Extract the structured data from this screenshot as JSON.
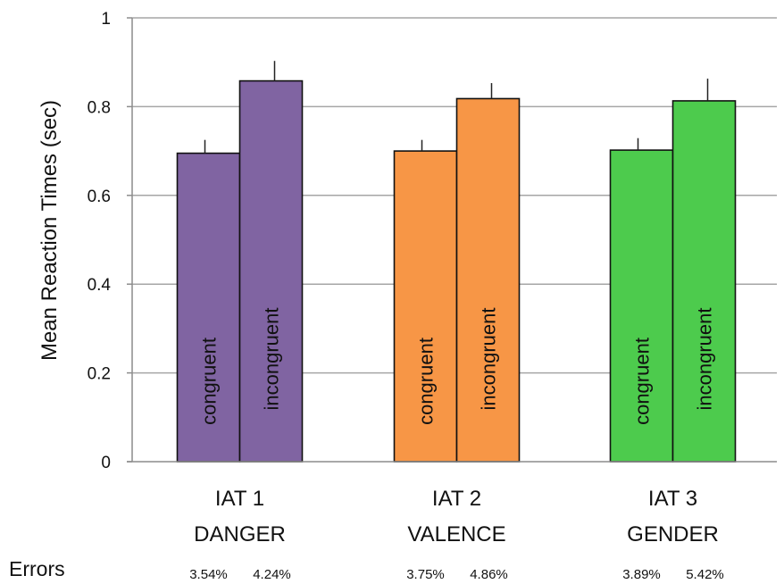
{
  "chart_data": {
    "type": "bar",
    "ylabel": "Mean Reaction Times (sec)",
    "ylim": [
      0,
      1
    ],
    "yticks": [
      {
        "value": 0,
        "label": "0"
      },
      {
        "value": 0.2,
        "label": "0.2"
      },
      {
        "value": 0.4,
        "label": "0.4"
      },
      {
        "value": 0.6,
        "label": "0.6"
      },
      {
        "value": 0.8,
        "label": "0.8"
      },
      {
        "value": 1,
        "label": "1"
      }
    ],
    "grid": true,
    "errors_label": "Errors",
    "groups": [
      {
        "label_line1": "IAT 1",
        "label_line2": "DANGER",
        "color": "#8064a2",
        "bars": [
          {
            "label": "congruent",
            "value": 0.695,
            "error": 0.03,
            "error_rate": "3.54%"
          },
          {
            "label": "incongruent",
            "value": 0.858,
            "error": 0.045,
            "error_rate": "4.24%"
          }
        ]
      },
      {
        "label_line1": "IAT 2",
        "label_line2": "VALENCE",
        "color": "#f79646",
        "bars": [
          {
            "label": "congruent",
            "value": 0.7,
            "error": 0.025,
            "error_rate": "3.75%"
          },
          {
            "label": "incongruent",
            "value": 0.818,
            "error": 0.035,
            "error_rate": "4.86%"
          }
        ]
      },
      {
        "label_line1": "IAT 3",
        "label_line2": "GENDER",
        "color": "#4dcb4d",
        "bars": [
          {
            "label": "congruent",
            "value": 0.702,
            "error": 0.027,
            "error_rate": "3.89%"
          },
          {
            "label": "incongruent",
            "value": 0.813,
            "error": 0.05,
            "error_rate": "5.42%"
          }
        ]
      }
    ]
  }
}
